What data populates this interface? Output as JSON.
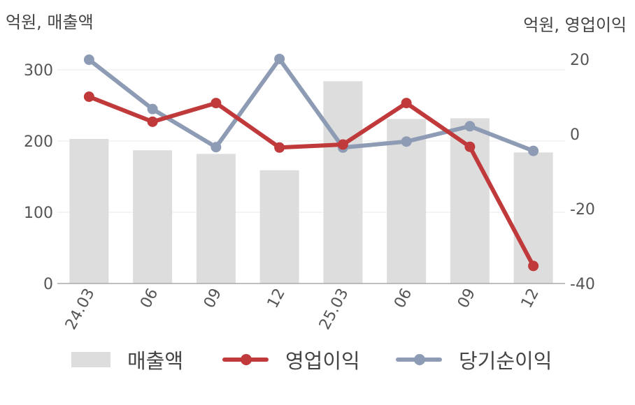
{
  "units": {
    "left": "억원, 매출액",
    "right": "억원, 영업이익"
  },
  "chart_data": {
    "type": "bar+line",
    "categories": [
      "24.03",
      "06",
      "09",
      "12",
      "25.03",
      "06",
      "09",
      "12"
    ],
    "series": [
      {
        "name": "매출액",
        "type": "bar",
        "axis": "left",
        "color": "#dddddd",
        "values": [
          203,
          187,
          182,
          159,
          284,
          231,
          232,
          184
        ]
      },
      {
        "name": "영업이익",
        "type": "line",
        "axis": "right",
        "color": "#c0393b",
        "values": [
          10,
          3.3,
          8.3,
          -3.6,
          -2.8,
          8.3,
          -3.4,
          -35.3
        ]
      },
      {
        "name": "당기순이익",
        "type": "line",
        "axis": "right",
        "color": "#8e9bb5",
        "values": [
          19.9,
          6.7,
          -3.5,
          20.1,
          -3.6,
          -2.0,
          2.1,
          -4.5
        ]
      }
    ],
    "y_left": {
      "ylim": [
        0,
        300
      ],
      "ticks": [
        0,
        100,
        200,
        300
      ]
    },
    "y_right": {
      "ylim": [
        -40,
        20
      ],
      "ticks": [
        -40,
        -20,
        0,
        20
      ]
    },
    "grid": true,
    "legend_position": "bottom"
  }
}
